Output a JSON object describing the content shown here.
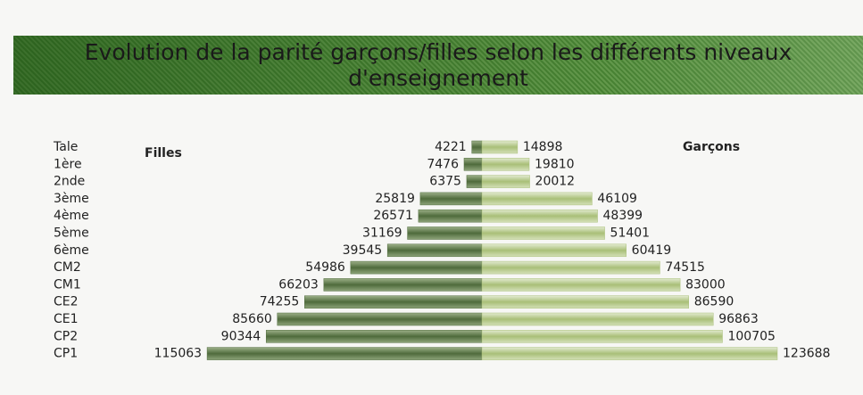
{
  "chart_data": {
    "type": "butterfly",
    "title": "Evolution de la parité garçons/filles selon les différents niveaux d'enseignement",
    "categories": [
      "Tale",
      "1ère",
      "2nde",
      "3ème",
      "4ème",
      "5ème",
      "6ème",
      "CM2",
      "CM1",
      "CE2",
      "CE1",
      "CP2",
      "CP1"
    ],
    "series": [
      {
        "name": "Filles",
        "color": "#4f6b3c",
        "values": [
          4221,
          7476,
          6375,
          25819,
          26571,
          31169,
          39545,
          54986,
          66203,
          74255,
          85660,
          90344,
          115063
        ]
      },
      {
        "name": "Garçons",
        "color": "#a9bf78",
        "values": [
          14898,
          19810,
          20012,
          46109,
          48399,
          51401,
          60419,
          74515,
          83000,
          86590,
          96863,
          100705,
          123688
        ]
      }
    ]
  }
}
